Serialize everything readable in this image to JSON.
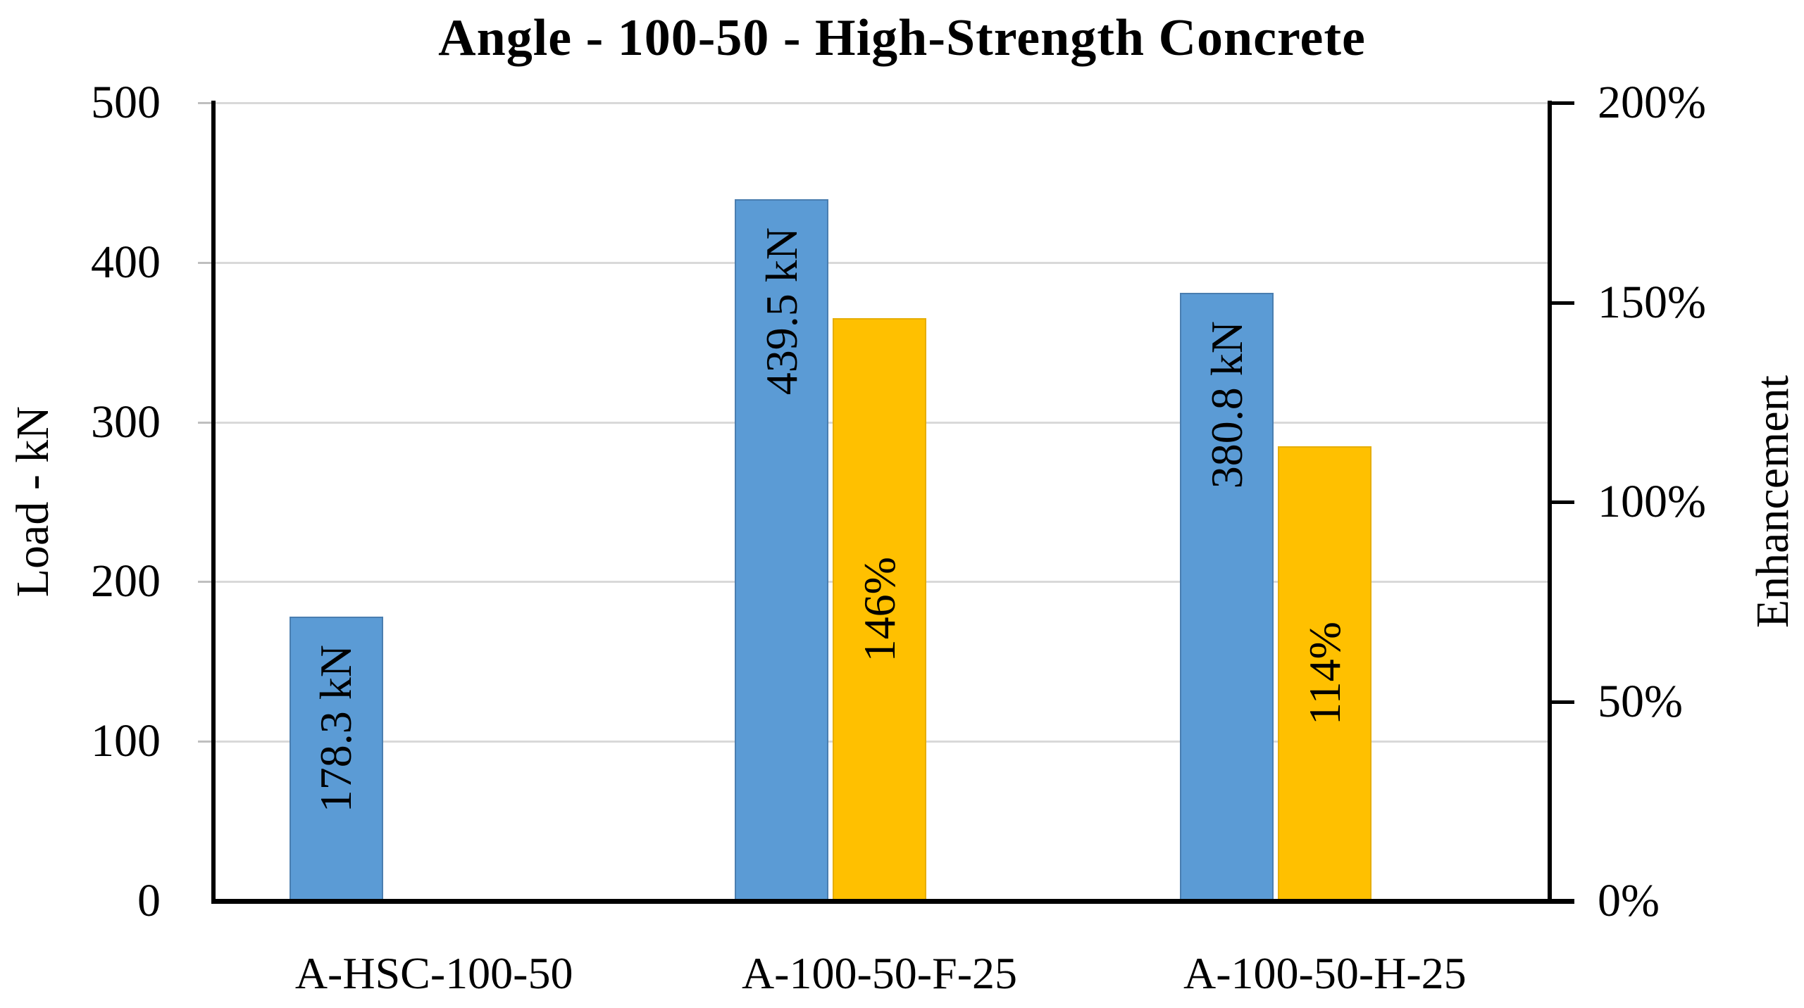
{
  "chart_data": {
    "type": "bar",
    "title": "Angle - 100-50 - High-Strength Concrete",
    "categories": [
      "A-HSC-100-50",
      "A-100-50-F-25",
      "A-100-50-H-25"
    ],
    "series": [
      {
        "name": "Load",
        "axis": "left",
        "color": "#5B9BD5",
        "border_color": "#4A7EB0",
        "values": [
          178.3,
          439.5,
          380.8
        ],
        "data_labels": [
          "178.3 kN",
          "439.5 kN",
          "380.8 kN"
        ],
        "label_position": "inside-end"
      },
      {
        "name": "Enhancement",
        "axis": "right",
        "color": "#FFC000",
        "border_color": "#E6AD00",
        "values": [
          null,
          146,
          114
        ],
        "data_labels": [
          "",
          "146%",
          "114%"
        ],
        "label_position": "center"
      }
    ],
    "left_axis": {
      "label": "Load - kN",
      "min": 0,
      "max": 500,
      "ticks": [
        0,
        100,
        200,
        300,
        400,
        500
      ],
      "tick_labels": [
        "0",
        "100",
        "200",
        "300",
        "400",
        "500"
      ]
    },
    "right_axis": {
      "label": "Enhancement",
      "min": 0,
      "max": 200,
      "ticks": [
        0,
        50,
        100,
        150,
        200
      ],
      "tick_labels": [
        "0%",
        "50%",
        "100%",
        "150%",
        "200%"
      ]
    },
    "grid": true,
    "legend": "none",
    "styles": {
      "background": "#FFFFFF",
      "grid_color": "#D9D9D9",
      "axis_color": "#000000",
      "left_minor_tick_color": "#BFBFBF",
      "right_tick_color": "#000000",
      "text_color": "#000000"
    }
  }
}
